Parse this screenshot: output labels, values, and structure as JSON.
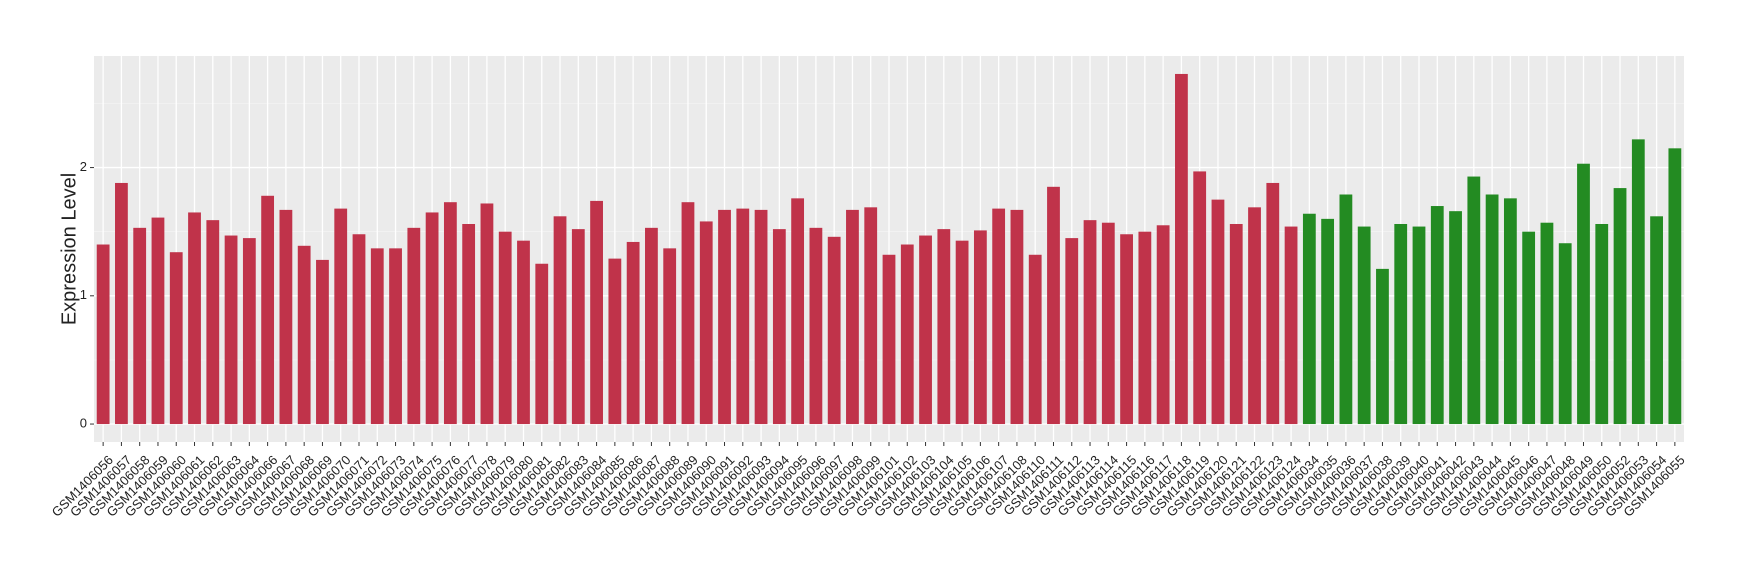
{
  "chart_data": {
    "type": "bar",
    "y_label": "Expression Level",
    "categories": [
      "GSM1406056",
      "GSM1406057",
      "GSM1406058",
      "GSM1406059",
      "GSM1406060",
      "GSM1406061",
      "GSM1406062",
      "GSM1406063",
      "GSM1406064",
      "GSM1406066",
      "GSM1406067",
      "GSM1406068",
      "GSM1406069",
      "GSM1406070",
      "GSM1406071",
      "GSM1406072",
      "GSM1406073",
      "GSM1406074",
      "GSM1406075",
      "GSM1406076",
      "GSM1406077",
      "GSM1406078",
      "GSM1406079",
      "GSM1406080",
      "GSM1406081",
      "GSM1406082",
      "GSM1406083",
      "GSM1406084",
      "GSM1406085",
      "GSM1406086",
      "GSM1406087",
      "GSM1406088",
      "GSM1406089",
      "GSM1406090",
      "GSM1406091",
      "GSM1406092",
      "GSM1406093",
      "GSM1406094",
      "GSM1406095",
      "GSM1406096",
      "GSM1406097",
      "GSM1406098",
      "GSM1406099",
      "GSM1406101",
      "GSM1406102",
      "GSM1406103",
      "GSM1406104",
      "GSM1406105",
      "GSM1406106",
      "GSM1406107",
      "GSM1406108",
      "GSM1406110",
      "GSM1406111",
      "GSM1406112",
      "GSM1406113",
      "GSM1406114",
      "GSM1406115",
      "GSM1406116",
      "GSM1406117",
      "GSM1406118",
      "GSM1406119",
      "GSM1406120",
      "GSM1406121",
      "GSM1406122",
      "GSM1406123",
      "GSM1406124",
      "GSM1406034",
      "GSM1406035",
      "GSM1406036",
      "GSM1406037",
      "GSM1406038",
      "GSM1406039",
      "GSM1406040",
      "GSM1406041",
      "GSM1406042",
      "GSM1406043",
      "GSM1406044",
      "GSM1406045",
      "GSM1406046",
      "GSM1406047",
      "GSM1406048",
      "GSM1406049",
      "GSM1406050",
      "GSM1406052",
      "GSM1406053",
      "GSM1406054",
      "GSM1406055"
    ],
    "values": [
      1.4,
      1.88,
      1.53,
      1.61,
      1.34,
      1.65,
      1.59,
      1.47,
      1.45,
      1.78,
      1.67,
      1.39,
      1.28,
      1.68,
      1.48,
      1.37,
      1.37,
      1.53,
      1.65,
      1.73,
      1.56,
      1.72,
      1.5,
      1.43,
      1.25,
      1.62,
      1.52,
      1.74,
      1.29,
      1.42,
      1.53,
      1.37,
      1.73,
      1.58,
      1.67,
      1.68,
      1.67,
      1.52,
      1.76,
      1.53,
      1.46,
      1.67,
      1.69,
      1.32,
      1.4,
      1.47,
      1.52,
      1.43,
      1.51,
      1.68,
      1.67,
      1.32,
      1.85,
      1.45,
      1.59,
      1.57,
      1.48,
      1.5,
      1.55,
      2.73,
      1.97,
      1.75,
      1.56,
      1.69,
      1.88,
      1.54,
      1.64,
      1.6,
      1.79,
      1.54,
      1.21,
      1.56,
      1.54,
      1.7,
      1.66,
      1.93,
      1.79,
      1.76,
      1.5,
      1.57,
      1.41,
      2.03,
      1.56,
      1.84,
      2.22,
      1.62,
      2.15
    ],
    "colors": [
      "#c0334a",
      "#c0334a",
      "#c0334a",
      "#c0334a",
      "#c0334a",
      "#c0334a",
      "#c0334a",
      "#c0334a",
      "#c0334a",
      "#c0334a",
      "#c0334a",
      "#c0334a",
      "#c0334a",
      "#c0334a",
      "#c0334a",
      "#c0334a",
      "#c0334a",
      "#c0334a",
      "#c0334a",
      "#c0334a",
      "#c0334a",
      "#c0334a",
      "#c0334a",
      "#c0334a",
      "#c0334a",
      "#c0334a",
      "#c0334a",
      "#c0334a",
      "#c0334a",
      "#c0334a",
      "#c0334a",
      "#c0334a",
      "#c0334a",
      "#c0334a",
      "#c0334a",
      "#c0334a",
      "#c0334a",
      "#c0334a",
      "#c0334a",
      "#c0334a",
      "#c0334a",
      "#c0334a",
      "#c0334a",
      "#c0334a",
      "#c0334a",
      "#c0334a",
      "#c0334a",
      "#c0334a",
      "#c0334a",
      "#c0334a",
      "#c0334a",
      "#c0334a",
      "#c0334a",
      "#c0334a",
      "#c0334a",
      "#c0334a",
      "#c0334a",
      "#c0334a",
      "#c0334a",
      "#c0334a",
      "#c0334a",
      "#c0334a",
      "#c0334a",
      "#c0334a",
      "#c0334a",
      "#c0334a",
      "#238b22",
      "#238b22",
      "#238b22",
      "#238b22",
      "#238b22",
      "#238b22",
      "#238b22",
      "#238b22",
      "#238b22",
      "#238b22",
      "#238b22",
      "#238b22",
      "#238b22",
      "#238b22",
      "#238b22",
      "#238b22",
      "#238b22",
      "#238b22",
      "#238b22",
      "#238b22",
      "#238b22"
    ],
    "ylim": [
      -0.14,
      2.87
    ],
    "yticks": [
      0,
      1,
      2
    ],
    "minor_yticks": [
      0.5,
      1.5,
      2.5
    ],
    "grid": true
  }
}
